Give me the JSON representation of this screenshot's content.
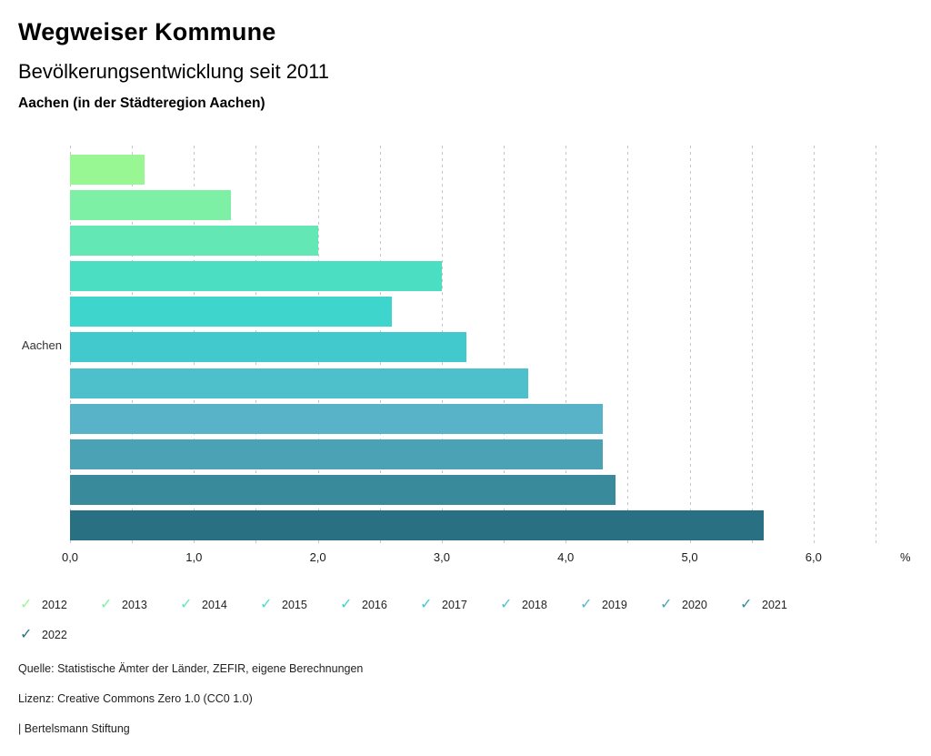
{
  "header": {
    "title": "Wegweiser Kommune",
    "subtitle": "Bevölkerungsentwicklung seit 2011",
    "region": "Aachen (in der Städteregion Aachen)"
  },
  "chart_data": {
    "type": "bar",
    "orientation": "horizontal",
    "category_label": "Aachen",
    "unit": "%",
    "xlim": [
      0,
      6.5
    ],
    "gridline_step": 0.5,
    "grid": true,
    "x_tick_labels": [
      "0,0",
      "1,0",
      "2,0",
      "3,0",
      "4,0",
      "5,0",
      "6,0"
    ],
    "x_tick_values": [
      0,
      1,
      2,
      3,
      4,
      5,
      6
    ],
    "series": [
      {
        "name": "2012",
        "value": 0.6,
        "color": "#99f793"
      },
      {
        "name": "2013",
        "value": 1.3,
        "color": "#7ef0a5"
      },
      {
        "name": "2014",
        "value": 2.0,
        "color": "#63e8b5"
      },
      {
        "name": "2015",
        "value": 3.0,
        "color": "#4bdec2"
      },
      {
        "name": "2016",
        "value": 2.6,
        "color": "#3ed5cd"
      },
      {
        "name": "2017",
        "value": 3.2,
        "color": "#41c9ce"
      },
      {
        "name": "2018",
        "value": 3.7,
        "color": "#4dc0cc"
      },
      {
        "name": "2019",
        "value": 4.3,
        "color": "#59b3c8"
      },
      {
        "name": "2020",
        "value": 4.3,
        "color": "#4aa2b4"
      },
      {
        "name": "2021",
        "value": 4.4,
        "color": "#398b9c"
      },
      {
        "name": "2022",
        "value": 5.6,
        "color": "#297083"
      }
    ],
    "legend": {
      "position": "bottom",
      "check_glyph": "✓"
    }
  },
  "footer": {
    "source": "Quelle: Statistische Ämter der Länder, ZEFIR, eigene Berechnungen",
    "license": "Lizenz: Creative Commons Zero 1.0 (CC0 1.0)",
    "attribution": "| Bertelsmann Stiftung"
  }
}
